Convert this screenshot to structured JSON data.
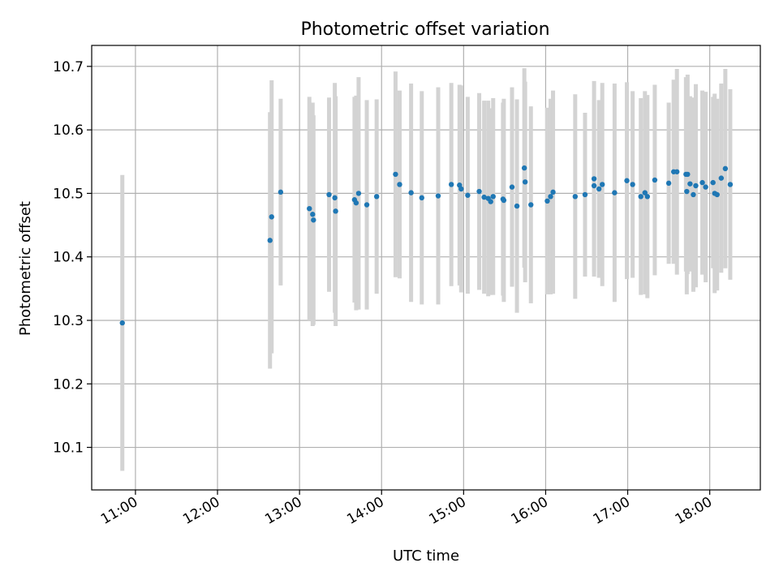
{
  "chart_data": {
    "type": "scatter",
    "title": "Photometric offset variation",
    "xlabel": "UTC time",
    "ylabel": "Photometric offset",
    "x_ticks": [
      "11:00",
      "12:00",
      "13:00",
      "14:00",
      "15:00",
      "16:00",
      "17:00",
      "18:00"
    ],
    "x_tick_values": [
      11,
      12,
      13,
      14,
      15,
      16,
      17,
      18
    ],
    "y_ticks": [
      "10.1",
      "10.2",
      "10.3",
      "10.4",
      "10.5",
      "10.6",
      "10.7"
    ],
    "y_tick_values": [
      10.1,
      10.2,
      10.3,
      10.4,
      10.5,
      10.6,
      10.7
    ],
    "xlim": [
      "10:28",
      "18:37"
    ],
    "ylim": [
      10.033,
      10.733
    ],
    "x_unit": "hours UTC",
    "grid": true,
    "colors": {
      "points": "#1f77b4",
      "errorbars": "#d3d3d3"
    },
    "series": [
      {
        "x": [
          10.84,
          12.64,
          12.66,
          12.77,
          13.12,
          13.16,
          13.17,
          13.36,
          13.43,
          13.44,
          13.67,
          13.69,
          13.72,
          13.82,
          13.94,
          14.17,
          14.22,
          14.36,
          14.49,
          14.69,
          14.85,
          14.95,
          14.97,
          15.05,
          15.19,
          15.25,
          15.3,
          15.33,
          15.36,
          15.48,
          15.49,
          15.59,
          15.65,
          15.74,
          15.75,
          15.82,
          16.02,
          16.06,
          16.09,
          16.36,
          16.48,
          16.59,
          16.59,
          16.65,
          16.69,
          16.84,
          16.99,
          17.06,
          17.16,
          17.21,
          17.24,
          17.33,
          17.5,
          17.56,
          17.6,
          17.71,
          17.72,
          17.73,
          17.76,
          17.8,
          17.83,
          17.91,
          17.95,
          18.04,
          18.06,
          18.09,
          18.14,
          18.19,
          18.25
        ],
        "y": [
          10.296,
          10.426,
          10.463,
          10.502,
          10.476,
          10.467,
          10.458,
          10.498,
          10.493,
          10.472,
          10.49,
          10.485,
          10.5,
          10.482,
          10.495,
          10.53,
          10.514,
          10.501,
          10.493,
          10.496,
          10.514,
          10.513,
          10.507,
          10.497,
          10.503,
          10.494,
          10.492,
          10.487,
          10.495,
          10.491,
          10.489,
          10.51,
          10.48,
          10.54,
          10.518,
          10.482,
          10.488,
          10.495,
          10.502,
          10.495,
          10.498,
          10.523,
          10.512,
          10.507,
          10.514,
          10.501,
          10.52,
          10.514,
          10.495,
          10.501,
          10.495,
          10.521,
          10.516,
          10.534,
          10.534,
          10.53,
          10.503,
          10.53,
          10.515,
          10.498,
          10.512,
          10.517,
          10.51,
          10.517,
          10.5,
          10.498,
          10.524,
          10.539,
          10.514
        ],
        "err": [
          0.233,
          0.202,
          0.215,
          0.147,
          0.176,
          0.176,
          0.165,
          0.153,
          0.181,
          0.181,
          0.162,
          0.169,
          0.183,
          0.165,
          0.153,
          0.162,
          0.148,
          0.172,
          0.168,
          0.171,
          0.16,
          0.158,
          0.163,
          0.155,
          0.155,
          0.152,
          0.154,
          0.147,
          0.155,
          0.152,
          0.16,
          0.157,
          0.168,
          0.157,
          0.158,
          0.155,
          0.147,
          0.154,
          0.16,
          0.161,
          0.129,
          0.154,
          0.135,
          0.14,
          0.16,
          0.172,
          0.155,
          0.147,
          0.155,
          0.16,
          0.16,
          0.15,
          0.127,
          0.145,
          0.162,
          0.153,
          0.162,
          0.157,
          0.138,
          0.153,
          0.16,
          0.145,
          0.15,
          0.135,
          0.157,
          0.151,
          0.149,
          0.157,
          0.15
        ]
      }
    ]
  }
}
